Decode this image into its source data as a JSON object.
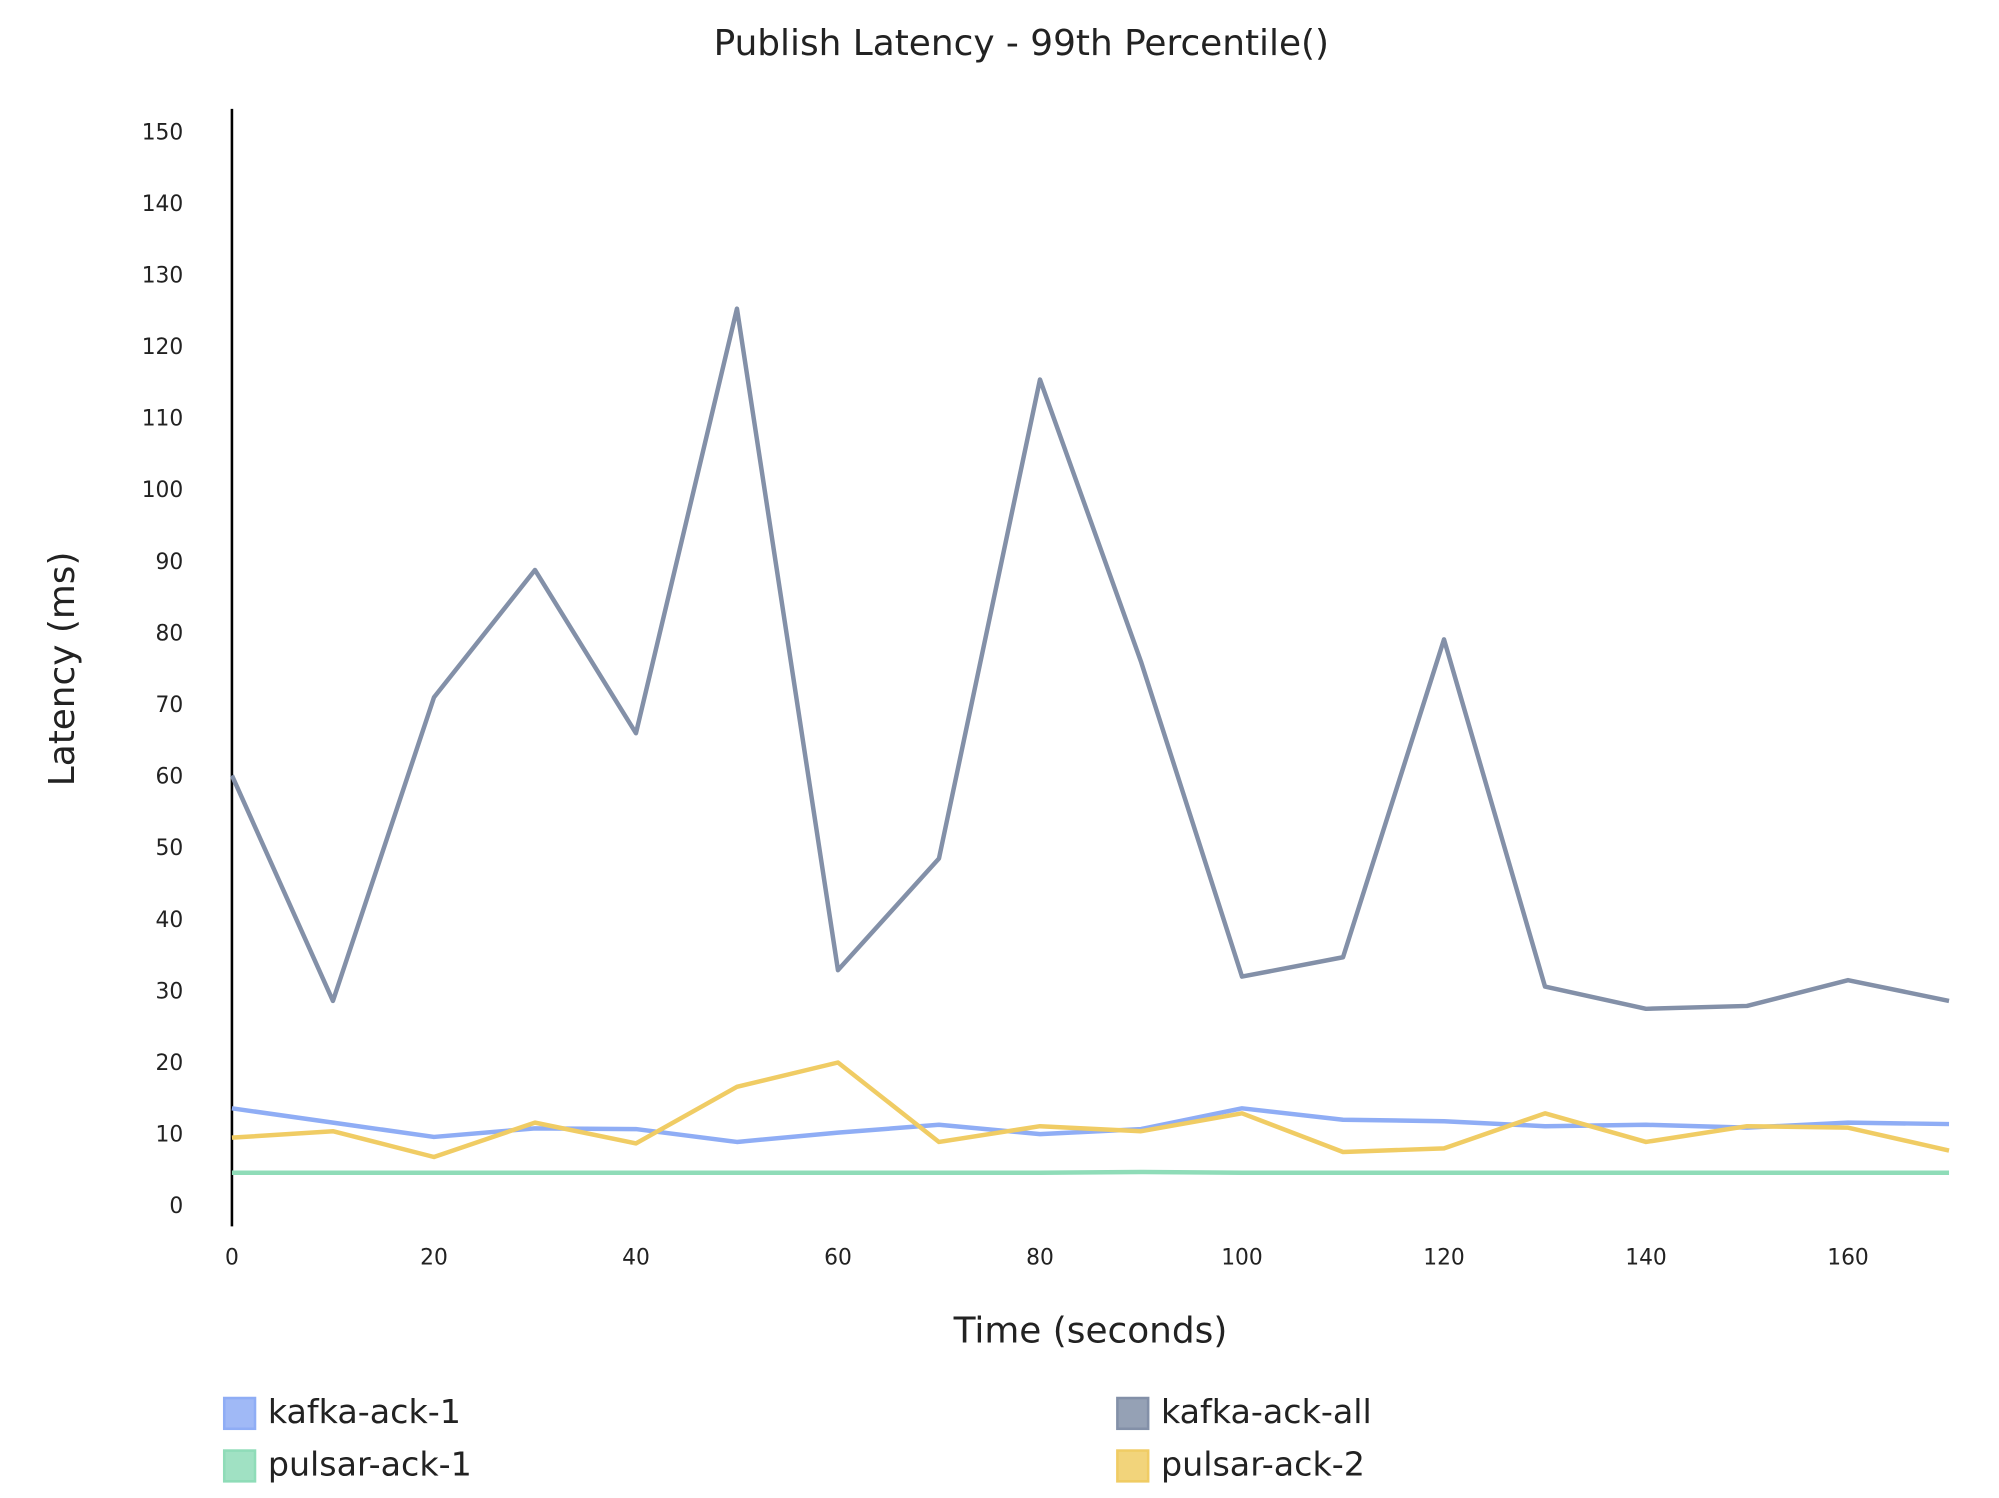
{
  "chart_data": {
    "type": "line",
    "title": "Publish Latency - 99th Percentile()",
    "x_label": "Time (seconds)",
    "y_label": "Latency (ms)",
    "x": [
      0,
      10,
      20,
      30,
      40,
      50,
      60,
      70,
      80,
      90,
      100,
      110,
      120,
      130,
      140,
      150,
      160,
      170
    ],
    "xlim": [
      0,
      170
    ],
    "xticks": [
      0,
      20,
      40,
      60,
      80,
      100,
      120,
      140,
      160
    ],
    "ylim": [
      0,
      150
    ],
    "yticks": [
      0,
      10,
      20,
      30,
      40,
      50,
      60,
      70,
      80,
      90,
      100,
      110,
      120,
      130,
      140,
      150
    ],
    "grid": false,
    "series": [
      {
        "name": "kafka-ack-1",
        "color": "#8fadf5",
        "values": [
          13.8,
          11.8,
          9.8,
          11,
          10.9,
          9.1,
          10.4,
          11.5,
          10.2,
          10.9,
          13.8,
          12.2,
          12,
          11.3,
          11.5,
          11.1,
          11.8,
          11.6
        ]
      },
      {
        "name": "kafka-ack-all",
        "color": "#8390a8",
        "values": [
          60.3,
          28.8,
          71.2,
          89,
          66.2,
          125.5,
          33.1,
          48.7,
          115.6,
          76.2,
          32.2,
          34.9,
          79.3,
          30.8,
          27.7,
          28.1,
          31.7,
          28.8
        ]
      },
      {
        "name": "pulsar-ack-1",
        "color": "#8fdcb8",
        "values": [
          4.8,
          4.8,
          4.8,
          4.8,
          4.8,
          4.8,
          4.8,
          4.8,
          4.8,
          4.9,
          4.8,
          4.8,
          4.8,
          4.8,
          4.8,
          4.8,
          4.8,
          4.8
        ]
      },
      {
        "name": "pulsar-ack-2",
        "color": "#f0cc64",
        "values": [
          9.7,
          10.6,
          7,
          11.8,
          8.9,
          16.8,
          20.2,
          9.1,
          11.3,
          10.6,
          13.1,
          7.7,
          8.2,
          13.1,
          9.1,
          11.3,
          11.1,
          7.9
        ]
      }
    ]
  }
}
